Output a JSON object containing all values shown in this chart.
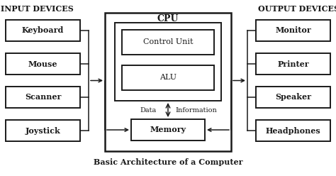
{
  "title": "Basic Architecture of a Computer",
  "bg_color": "#ffffff",
  "box_facecolor": "#ffffff",
  "box_edgecolor": "#1a1a1a",
  "input_label": "INPUT DEVICES",
  "output_label": "OUTPUT DEVICES",
  "input_devices": [
    "Keyboard",
    "Mouse",
    "Scanner",
    "Joystick"
  ],
  "output_devices": [
    "Monitor",
    "Printer",
    "Speaker",
    "Headphones"
  ],
  "cpu_label": "CPU",
  "inner_boxes": [
    "Control Unit",
    "ALU"
  ],
  "memory_label": "Memory",
  "data_label": "Data",
  "info_label": "Information",
  "lw_outer": 1.8,
  "lw_inner": 1.4,
  "lw_line": 1.1
}
